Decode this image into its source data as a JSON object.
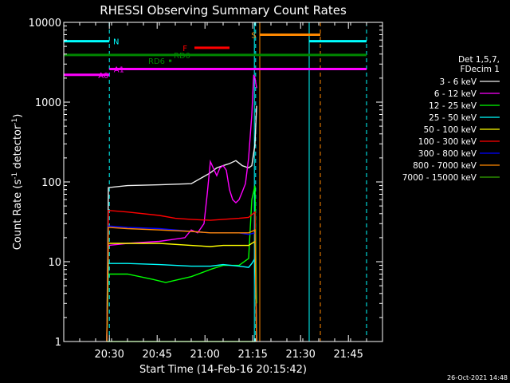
{
  "chart_data": {
    "type": "line",
    "title": "RHESSI Observing Summary Count Rates",
    "xlabel": "Start Time (14-Feb-16 20:15:42)",
    "ylabel": "Count Rate (s",
    "ylabel_sup1": "-1",
    "ylabel_mid": " detector",
    "ylabel_sup2": "-1",
    "ylabel_end": ")",
    "y_scale": "log",
    "ylim": [
      1,
      10000
    ],
    "y_ticks": [
      {
        "value": 1,
        "label": "1"
      },
      {
        "value": 10,
        "label": "10"
      },
      {
        "value": 100,
        "label": "100"
      },
      {
        "value": 1000,
        "label": "1000"
      },
      {
        "value": 10000,
        "label": "10000"
      }
    ],
    "xlim_minutes": [
      0,
      100
    ],
    "x_ticks": [
      {
        "minute": 14.3,
        "label": "20:30"
      },
      {
        "minute": 29.3,
        "label": "20:45"
      },
      {
        "minute": 44.3,
        "label": "21:00"
      },
      {
        "minute": 59.3,
        "label": "21:15"
      },
      {
        "minute": 74.3,
        "label": "21:30"
      },
      {
        "minute": 89.3,
        "label": "21:45"
      }
    ],
    "legend_header": [
      "Det 1,5,7,",
      "FDecim 1"
    ],
    "legend_position": "right",
    "series": [
      {
        "name": "3 - 6 keV",
        "color": "#f0f0f0",
        "x": [
          13.5,
          14,
          20,
          30,
          40,
          46,
          48,
          50,
          52,
          54,
          56,
          58,
          59,
          60,
          60.5
        ],
        "y": [
          1,
          85,
          90,
          92,
          95,
          130,
          150,
          160,
          170,
          185,
          160,
          150,
          160,
          300,
          900
        ]
      },
      {
        "name": "6 - 12 keV",
        "color": "#ff00ff",
        "x": [
          13.5,
          14,
          20,
          30,
          38,
          40,
          42,
          44,
          45,
          46,
          48,
          49,
          50,
          51,
          52,
          53,
          54,
          55,
          56,
          57,
          58,
          59,
          59.6,
          60,
          60.5
        ],
        "y": [
          1,
          16,
          17,
          18,
          20,
          25,
          23,
          30,
          70,
          180,
          120,
          150,
          160,
          140,
          80,
          60,
          55,
          60,
          75,
          95,
          200,
          700,
          2200,
          2000,
          1500
        ]
      },
      {
        "name": "12 - 25 keV",
        "color": "#00ff00",
        "x": [
          13.5,
          14,
          20,
          28,
          32,
          40,
          46,
          50,
          55,
          58,
          59,
          60,
          60.5
        ],
        "y": [
          1,
          7,
          7,
          6,
          5.5,
          6.5,
          8,
          9,
          9,
          11,
          60,
          90,
          3
        ]
      },
      {
        "name": "25 - 50 keV",
        "color": "#00ffff",
        "x": [
          13.5,
          14,
          20,
          30,
          40,
          46,
          50,
          55,
          58,
          59,
          60,
          60.5
        ],
        "y": [
          1,
          9.5,
          9.5,
          9.2,
          8.8,
          8.8,
          9.2,
          8.8,
          8.5,
          9.5,
          11,
          1
        ]
      },
      {
        "name": "50 - 100 keV",
        "color": "#ffff00",
        "x": [
          13.5,
          14,
          20,
          30,
          40,
          46,
          50,
          55,
          58,
          60,
          60.5
        ],
        "y": [
          1,
          17,
          17,
          17,
          16,
          15.5,
          16,
          16,
          16,
          18,
          1
        ]
      },
      {
        "name": "100 - 300 keV",
        "color": "#ff0000",
        "x": [
          13.5,
          14,
          20,
          30,
          35,
          40,
          46,
          50,
          55,
          58,
          60,
          60.5
        ],
        "y": [
          1,
          44,
          42,
          38,
          35,
          34,
          33,
          34,
          35,
          36,
          42,
          1
        ]
      },
      {
        "name": "300 - 800 keV",
        "color": "#0000ff",
        "x": [
          13.5,
          14,
          20,
          30,
          40,
          46,
          50,
          55,
          58,
          60,
          60.5
        ],
        "y": [
          1,
          28,
          27,
          26,
          24,
          23,
          23,
          23,
          22,
          23,
          1
        ]
      },
      {
        "name": "800 - 7000 keV",
        "color": "#ff8800",
        "x": [
          13.5,
          14,
          20,
          30,
          40,
          46,
          50,
          55,
          58,
          60,
          60.5
        ],
        "y": [
          1,
          27,
          26,
          25,
          24,
          23,
          23,
          23,
          23,
          25,
          1
        ]
      },
      {
        "name": "7000 - 15000 keV",
        "color": "#33aa00",
        "x": [
          13.5,
          14,
          20,
          40,
          60
        ],
        "y": [
          1,
          1,
          1,
          1,
          1
        ]
      }
    ],
    "flag_bars": [
      {
        "label": "N",
        "color": "#00ffff",
        "x0": 0,
        "x1": 14.3,
        "y": 5800,
        "label_x": 15.5
      },
      {
        "label": "",
        "color": "#00ffff",
        "x0": 77,
        "x1": 95,
        "y": 5800,
        "label_x": 0
      },
      {
        "label": "S",
        "color": "#ff8800",
        "x0": 61.5,
        "x1": 80.5,
        "y": 7000,
        "label_x": 58.8
      },
      {
        "label": "F",
        "color": "#ff0000",
        "x0": 41,
        "x1": 52,
        "y": 4800,
        "label_x": 37.3
      },
      {
        "label": "RD0",
        "color": "#008800",
        "x0": 0,
        "x1": 95,
        "y": 3900,
        "label_x": 34.5
      },
      {
        "label": "RD6",
        "color": "#008800",
        "x0": 33,
        "x1": 33.8,
        "y": 3300,
        "label_x": 26.5
      },
      {
        "label": "A0",
        "color": "#ff00ff",
        "x0": 0,
        "x1": 14.3,
        "y": 2200,
        "label_x": 10.8
      },
      {
        "label": "A1",
        "color": "#ff00ff",
        "x0": 14.3,
        "x1": 95,
        "y": 2600,
        "label_x": 15.7
      }
    ],
    "vlines": [
      {
        "x": 0,
        "color": "#00ffff",
        "dash": false
      },
      {
        "x": 14.3,
        "color": "#00ffff",
        "dash": true
      },
      {
        "x": 59.8,
        "color": "#00ffff",
        "dash": false
      },
      {
        "x": 60.2,
        "color": "#00ffff",
        "dash": true
      },
      {
        "x": 61.5,
        "color": "#ff8800",
        "dash": false
      },
      {
        "x": 77,
        "color": "#00ffff",
        "dash": false
      },
      {
        "x": 80.5,
        "color": "#ff8800",
        "dash": true
      },
      {
        "x": 95,
        "color": "#00ffff",
        "dash": true
      }
    ],
    "timestamp": "26-Oct-2021 14:48"
  }
}
